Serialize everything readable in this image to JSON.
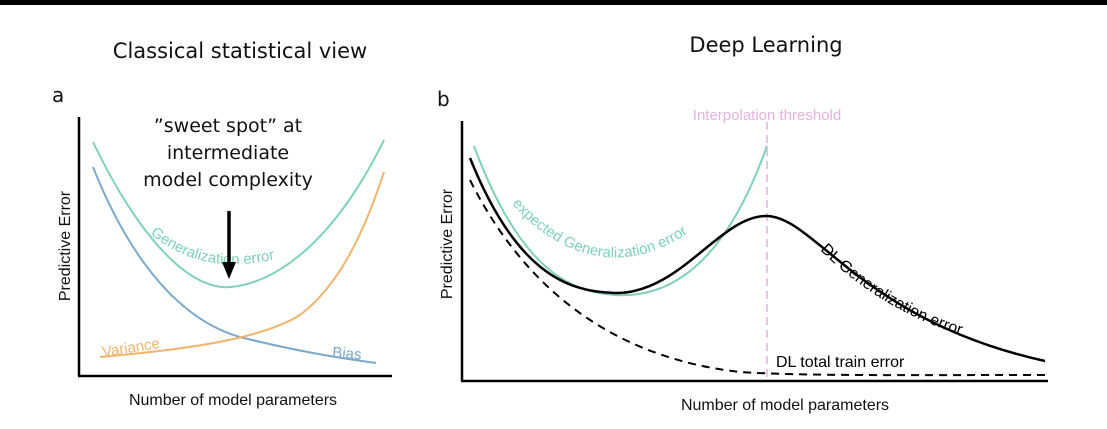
{
  "panel_a": {
    "heading": "Classical statistical view",
    "letter": "a",
    "ylabel": "Predictive Error",
    "xlabel": "Number of model parameters",
    "annotation_lines": [
      "”sweet spot” at",
      "intermediate",
      "model complexity"
    ],
    "curve_labels": {
      "generalization": "Generalization error",
      "variance": "Variance",
      "bias": "Bias"
    }
  },
  "panel_b": {
    "heading": "Deep Learning",
    "letter": "b",
    "ylabel": "Predictive Error",
    "xlabel": "Number of model parameters",
    "threshold_label": "Interpolation threshold",
    "curve_labels": {
      "expected": "expected Generalization error",
      "dl_generalization": "DL Generalization error",
      "dl_train": "DL total train error"
    }
  },
  "colors": {
    "generalization": "#7fd1bb",
    "variance": "#f0b46e",
    "bias": "#7ba9cc",
    "threshold": "#e3b3e0",
    "axis": "#000000"
  },
  "icons": [
    "down-arrow-icon"
  ]
}
